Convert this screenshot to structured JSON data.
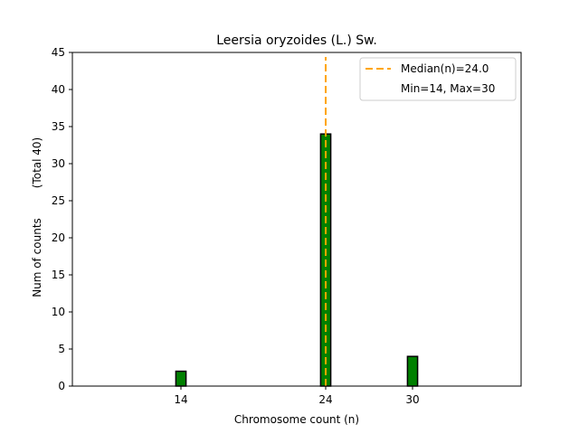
{
  "chart_data": {
    "type": "bar",
    "title": "Leersia oryzoides (L.) Sw.",
    "xlabel": "Chromosome count (n)",
    "ylabel": "Num of counts",
    "ylabel_extra": "(Total 40)",
    "xlim": [
      6.5,
      37.5
    ],
    "ylim": [
      0,
      45
    ],
    "yticks": [
      0,
      5,
      10,
      15,
      20,
      25,
      30,
      35,
      40,
      45
    ],
    "xticks": [
      14,
      24,
      30
    ],
    "bar_width": 0.7,
    "bars": [
      {
        "x": 14,
        "value": 2
      },
      {
        "x": 24,
        "value": 34
      },
      {
        "x": 30,
        "value": 4
      }
    ],
    "median": 24.0,
    "legend": {
      "placement": "top-right",
      "entries": [
        "Median(n)=24.0",
        "Min=14, Max=30"
      ]
    },
    "colors": {
      "bar_fill": "#008000",
      "bar_edge": "#000000",
      "median_line": "#FFA500"
    }
  }
}
